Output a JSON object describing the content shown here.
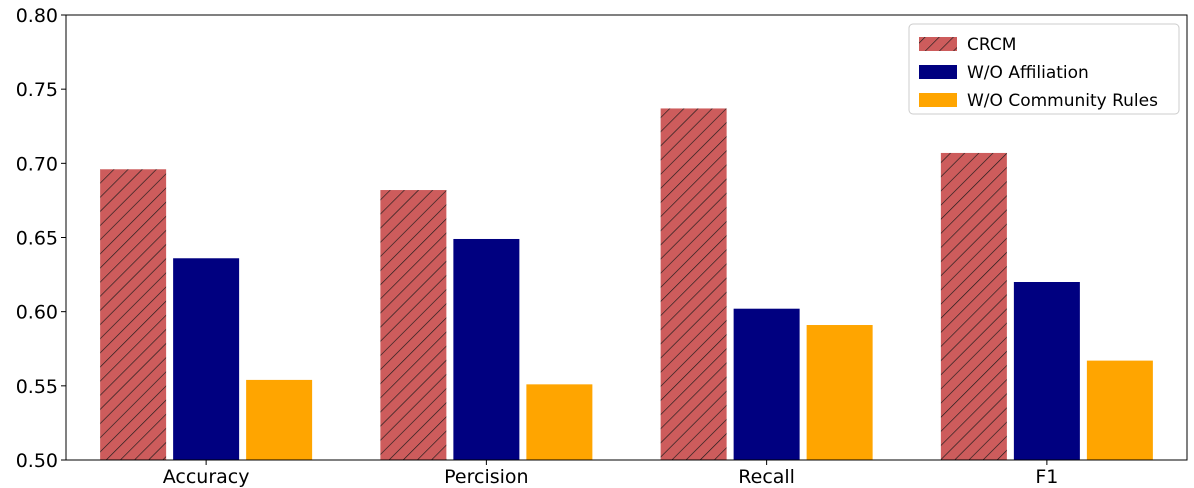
{
  "chart_data": {
    "type": "bar",
    "title": "",
    "xlabel": "",
    "ylabel": "",
    "categories": [
      "Accuracy",
      "Percision",
      "Recall",
      "F1"
    ],
    "series": [
      {
        "name": "CRCM",
        "values": [
          0.696,
          0.682,
          0.737,
          0.707
        ],
        "color": "#cd5c5c",
        "hatch": "diagonal"
      },
      {
        "name": "W/O Affiliation",
        "values": [
          0.636,
          0.649,
          0.602,
          0.62
        ],
        "color": "#000080"
      },
      {
        "name": "W/O Community Rules",
        "values": [
          0.554,
          0.551,
          0.591,
          0.567
        ],
        "color": "#ffa500"
      }
    ],
    "ylim": [
      0.5,
      0.8
    ],
    "yticks": [
      "0.50",
      "0.55",
      "0.60",
      "0.65",
      "0.70",
      "0.75",
      "0.80"
    ],
    "grid": false,
    "legend_position": "top-right"
  }
}
